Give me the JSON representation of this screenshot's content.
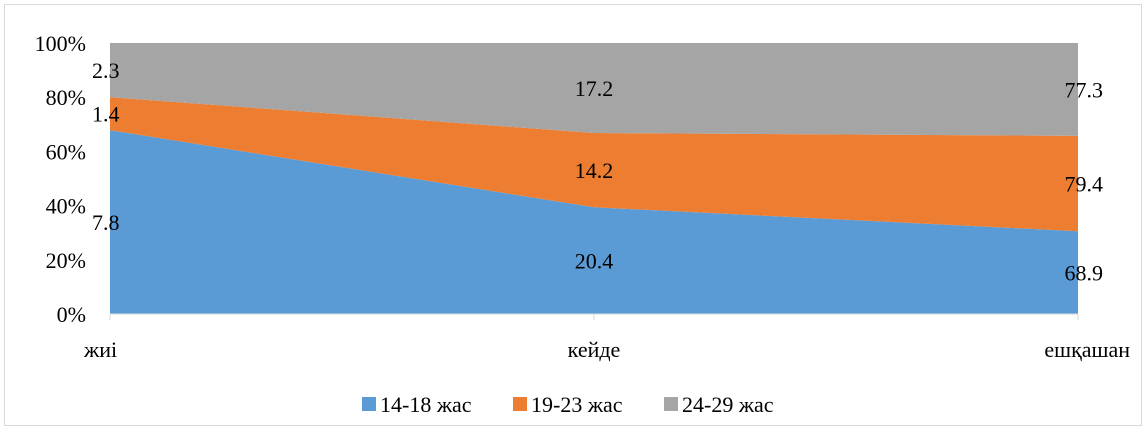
{
  "chart_data": {
    "type": "area",
    "stacked": "percent",
    "categories": [
      "жиі",
      "кейде",
      "ешқашан"
    ],
    "series": [
      {
        "name": "14-18 жас",
        "values": [
          7.8,
          20.4,
          68.9
        ],
        "color": "#5b9bd5"
      },
      {
        "name": "19-23 жас",
        "values": [
          1.4,
          14.2,
          79.4
        ],
        "color": "#ed7d31"
      },
      {
        "name": "24-29 жас",
        "values": [
          2.3,
          17.2,
          77.3
        ],
        "color": "#a5a5a5"
      }
    ],
    "y_ticks": [
      "0%",
      "20%",
      "40%",
      "60%",
      "80%",
      "100%"
    ],
    "ylim": [
      0,
      100
    ],
    "legend_position": "bottom",
    "grid": false
  }
}
